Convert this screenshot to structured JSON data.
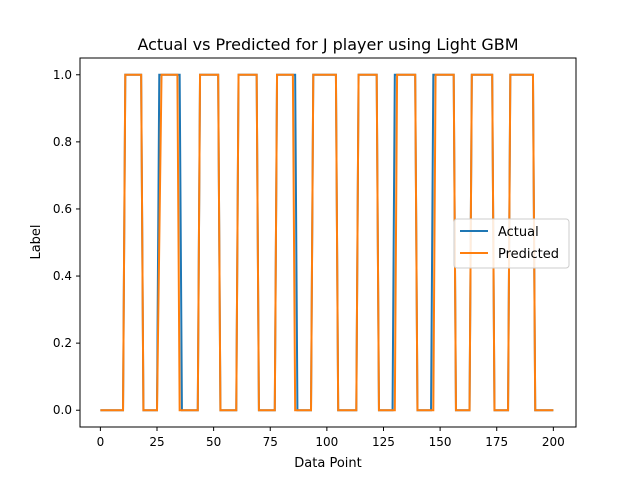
{
  "chart_data": {
    "type": "line",
    "title": "Actual vs Predicted for J player using Light GBM",
    "xlabel": "Data Point",
    "ylabel": "Label",
    "xlim": [
      -9,
      210
    ],
    "ylim": [
      -0.05,
      1.05
    ],
    "xticks": [
      0,
      25,
      50,
      75,
      100,
      125,
      150,
      175,
      200
    ],
    "yticks": [
      0.0,
      0.2,
      0.4,
      0.6,
      0.8,
      1.0
    ],
    "xtick_labels": [
      "0",
      "25",
      "50",
      "75",
      "100",
      "125",
      "150",
      "175",
      "200"
    ],
    "ytick_labels": [
      "0.0",
      "0.2",
      "0.4",
      "0.6",
      "0.8",
      "1.0"
    ],
    "grid": false,
    "legend": "center-right",
    "series": [
      {
        "name": "Actual",
        "color": "#1f77b4",
        "x": [
          0,
          10,
          11,
          18,
          19,
          25,
          26,
          35,
          36,
          43,
          44,
          52,
          53,
          60,
          61,
          69,
          70,
          77,
          78,
          86,
          87,
          93,
          94,
          104,
          105,
          113,
          114,
          122,
          123,
          129,
          130,
          139,
          140,
          146,
          147,
          156,
          157,
          163,
          164,
          173,
          174,
          180,
          181,
          191,
          192,
          200
        ],
        "y": [
          0,
          0,
          1,
          1,
          0,
          0,
          1,
          1,
          0,
          0,
          1,
          1,
          0,
          0,
          1,
          1,
          0,
          0,
          1,
          1,
          0,
          0,
          1,
          1,
          0,
          0,
          1,
          1,
          0,
          0,
          1,
          1,
          0,
          0,
          1,
          1,
          0,
          0,
          1,
          1,
          0,
          0,
          1,
          1,
          0,
          0
        ]
      },
      {
        "name": "Predicted",
        "color": "#ff7f0e",
        "x": [
          0,
          10,
          11,
          18,
          19,
          25,
          27,
          34,
          35,
          43,
          44,
          52,
          53,
          60,
          61,
          69,
          70,
          77,
          78,
          85,
          86,
          93,
          94,
          104,
          105,
          113,
          114,
          122,
          123,
          130,
          131,
          139,
          140,
          147,
          148,
          156,
          157,
          163,
          164,
          173,
          174,
          180,
          181,
          191,
          192,
          200
        ],
        "y": [
          0,
          0,
          1,
          1,
          0,
          0,
          1,
          1,
          0,
          0,
          1,
          1,
          0,
          0,
          1,
          1,
          0,
          0,
          1,
          1,
          0,
          0,
          1,
          1,
          0,
          0,
          1,
          1,
          0,
          0,
          1,
          1,
          0,
          0,
          1,
          1,
          0,
          0,
          1,
          1,
          0,
          0,
          1,
          1,
          0,
          0
        ]
      }
    ]
  }
}
